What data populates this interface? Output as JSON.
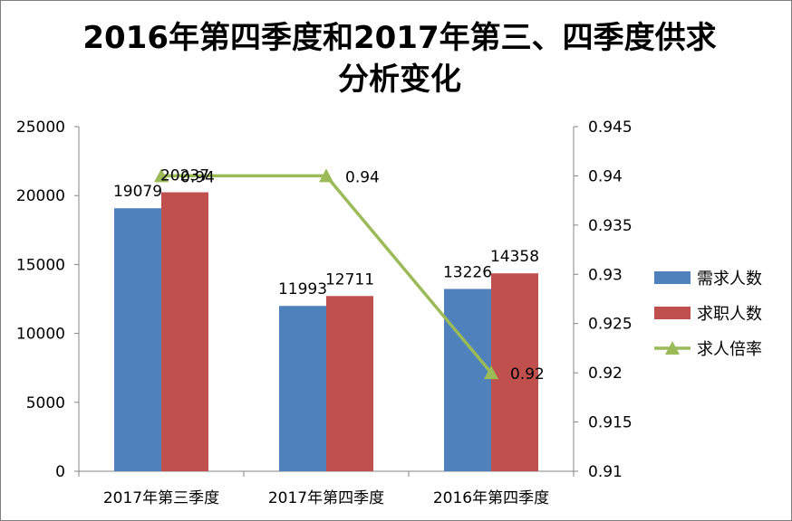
{
  "chart_data": {
    "type": "bar",
    "title": "2016年第四季度和2017年第三、四季度供求分析变化",
    "categories": [
      "2017年第三季度",
      "2017年第四季度",
      "2016年第四季度"
    ],
    "series": [
      {
        "name": "需求人数",
        "type": "bar",
        "axis": "left",
        "color": "#4f81bd",
        "values": [
          19079,
          11993,
          13226
        ]
      },
      {
        "name": "求职人数",
        "type": "bar",
        "axis": "left",
        "color": "#c0504d",
        "values": [
          20237,
          12711,
          14358
        ]
      },
      {
        "name": "求人倍率",
        "type": "line",
        "axis": "right",
        "color": "#9bbb59",
        "marker": "triangle",
        "values": [
          0.94,
          0.94,
          0.92
        ]
      }
    ],
    "y_left": {
      "min": 0,
      "max": 25000,
      "ticks": [
        "0",
        "5000",
        "10000",
        "15000",
        "20000",
        "25000"
      ]
    },
    "y_right": {
      "min": 0.91,
      "max": 0.945,
      "ticks": [
        "0.91",
        "0.915",
        "0.92",
        "0.925",
        "0.93",
        "0.935",
        "0.94",
        "0.945"
      ]
    },
    "legend": "right",
    "grid": false,
    "data_labels": true
  }
}
